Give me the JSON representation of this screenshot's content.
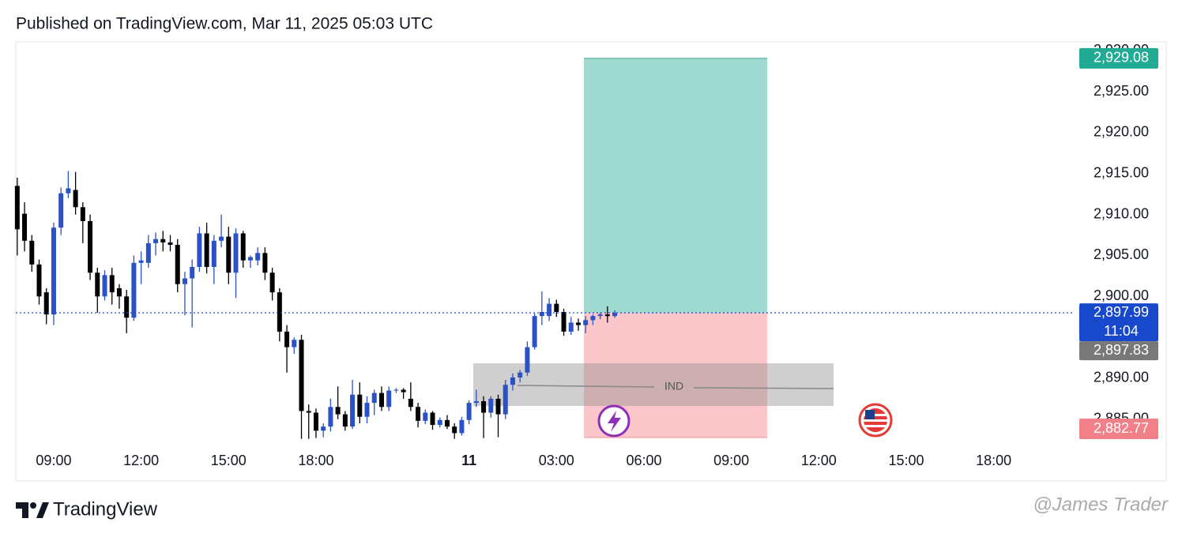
{
  "header": "Published on TradingView.com, Mar 11, 2025 05:03 UTC",
  "footer": "TradingView",
  "watermark": "@James Trader",
  "chart_data": {
    "type": "candlestick",
    "up_color": "#2a52c4",
    "down_color": "#000000",
    "x": [
      0,
      1,
      2,
      3,
      4,
      5,
      6,
      7,
      8,
      9,
      10,
      11,
      12,
      13,
      14,
      15,
      16,
      17,
      18,
      19,
      20,
      21,
      22,
      23,
      24,
      25,
      26,
      27,
      28,
      29,
      30,
      31,
      32,
      33,
      34,
      35,
      36,
      37,
      38,
      39,
      40,
      41,
      42,
      43,
      44,
      45,
      46,
      47,
      48,
      49,
      50,
      51,
      52,
      53,
      54,
      55,
      56,
      57,
      58,
      59,
      60,
      61,
      62,
      63,
      64,
      65,
      66,
      67,
      68,
      69,
      70,
      71,
      72,
      73,
      74,
      75,
      76,
      77,
      78,
      79,
      80,
      81,
      82
    ],
    "candles": [
      [
        2913.5,
        2914.5,
        2905.0,
        2908.2
      ],
      [
        2910.1,
        2911.5,
        2905.5,
        2906.8
      ],
      [
        2906.8,
        2907.5,
        2903.0,
        2903.9
      ],
      [
        2903.9,
        2904.5,
        2899.0,
        2900.0
      ],
      [
        2900.5,
        2901.0,
        2896.6,
        2897.8
      ],
      [
        2897.8,
        2909.0,
        2896.5,
        2908.4
      ],
      [
        2908.4,
        2913.3,
        2907.5,
        2912.6
      ],
      [
        2912.6,
        2915.3,
        2912.0,
        2913.2
      ],
      [
        2913.0,
        2915.2,
        2910.0,
        2910.9
      ],
      [
        2910.9,
        2911.5,
        2906.5,
        2909.2
      ],
      [
        2909.2,
        2910.0,
        2902.0,
        2902.9
      ],
      [
        2902.9,
        2903.5,
        2898.0,
        2900.0
      ],
      [
        2900.0,
        2903.2,
        2899.5,
        2902.6
      ],
      [
        2902.6,
        2903.5,
        2899.0,
        2900.5
      ],
      [
        2901.0,
        2901.5,
        2898.5,
        2900.0
      ],
      [
        2900.0,
        2900.8,
        2895.5,
        2897.4
      ],
      [
        2897.4,
        2905.0,
        2897.0,
        2904.1
      ],
      [
        2904.1,
        2905.5,
        2901.5,
        2904.4
      ],
      [
        2904.1,
        2907.5,
        2903.5,
        2906.5
      ],
      [
        2906.5,
        2907.8,
        2905.0,
        2907.0
      ],
      [
        2907.0,
        2908.0,
        2905.5,
        2906.6
      ],
      [
        2906.6,
        2907.5,
        2905.5,
        2906.3
      ],
      [
        2906.3,
        2907.0,
        2900.5,
        2901.5
      ],
      [
        2901.5,
        2903.0,
        2897.7,
        2902.2
      ],
      [
        2902.2,
        2904.5,
        2896.2,
        2903.6
      ],
      [
        2903.6,
        2908.5,
        2903.0,
        2907.7
      ],
      [
        2907.7,
        2909.0,
        2902.8,
        2903.6
      ],
      [
        2903.6,
        2907.5,
        2901.5,
        2906.8
      ],
      [
        2906.8,
        2910.0,
        2906.0,
        2907.3
      ],
      [
        2907.3,
        2908.5,
        2901.5,
        2902.9
      ],
      [
        2902.9,
        2908.3,
        2899.8,
        2907.7
      ],
      [
        2907.7,
        2908.0,
        2903.5,
        2904.4
      ],
      [
        2904.4,
        2905.0,
        2903.5,
        2904.8
      ],
      [
        2904.4,
        2906.0,
        2903.8,
        2905.3
      ],
      [
        2905.3,
        2906.0,
        2902.0,
        2902.9
      ],
      [
        2902.9,
        2903.5,
        2899.5,
        2900.5
      ],
      [
        2900.5,
        2901.0,
        2894.5,
        2895.7
      ],
      [
        2895.7,
        2896.5,
        2890.7,
        2893.8
      ],
      [
        2893.8,
        2895.0,
        2893.0,
        2894.7
      ],
      [
        2894.7,
        2895.3,
        2882.6,
        2886.0
      ],
      [
        2886.0,
        2886.8,
        2882.6,
        2885.8
      ],
      [
        2885.8,
        2886.3,
        2882.7,
        2883.6
      ],
      [
        2883.6,
        2884.5,
        2882.8,
        2884.1
      ],
      [
        2884.1,
        2887.5,
        2883.5,
        2886.5
      ],
      [
        2886.5,
        2889.0,
        2885.0,
        2885.6
      ],
      [
        2885.6,
        2886.0,
        2883.6,
        2884.1
      ],
      [
        2884.1,
        2889.8,
        2883.8,
        2888.0
      ],
      [
        2888.0,
        2889.5,
        2884.5,
        2885.3
      ],
      [
        2885.3,
        2887.8,
        2884.5,
        2887.0
      ],
      [
        2887.0,
        2888.6,
        2885.5,
        2888.2
      ],
      [
        2888.2,
        2889.0,
        2886.0,
        2886.5
      ],
      [
        2886.5,
        2889.0,
        2886.0,
        2888.5
      ],
      [
        2888.5,
        2888.8,
        2888.2,
        2888.6
      ],
      [
        2888.6,
        2888.8,
        2887.5,
        2888.3
      ],
      [
        2887.5,
        2889.5,
        2886.0,
        2886.5
      ],
      [
        2886.5,
        2887.0,
        2884.0,
        2884.8
      ],
      [
        2884.8,
        2886.2,
        2884.4,
        2885.8
      ],
      [
        2885.8,
        2886.0,
        2883.7,
        2884.3
      ],
      [
        2884.3,
        2885.2,
        2884.0,
        2884.9
      ],
      [
        2884.9,
        2885.5,
        2883.8,
        2884.1
      ],
      [
        2884.1,
        2884.5,
        2882.6,
        2883.3
      ],
      [
        2883.3,
        2885.3,
        2883.0,
        2884.9
      ],
      [
        2884.9,
        2887.3,
        2884.4,
        2887.0
      ],
      [
        2887.0,
        2888.6,
        2886.5,
        2887.2
      ],
      [
        2887.2,
        2887.8,
        2882.7,
        2885.8
      ],
      [
        2885.8,
        2887.8,
        2885.2,
        2887.5
      ],
      [
        2887.5,
        2888.0,
        2882.8,
        2885.6
      ],
      [
        2885.6,
        2889.8,
        2885.0,
        2889.2
      ],
      [
        2889.2,
        2890.6,
        2888.5,
        2890.1
      ],
      [
        2890.1,
        2891.0,
        2889.5,
        2890.7
      ],
      [
        2890.7,
        2894.5,
        2890.3,
        2893.8
      ],
      [
        2893.8,
        2897.9,
        2893.5,
        2897.6
      ],
      [
        2897.6,
        2900.6,
        2896.5,
        2898.1
      ],
      [
        2897.6,
        2899.8,
        2897.0,
        2899.1
      ],
      [
        2899.1,
        2899.6,
        2897.5,
        2898.1
      ],
      [
        2898.1,
        2898.5,
        2895.2,
        2895.7
      ],
      [
        2895.7,
        2897.5,
        2895.3,
        2896.8
      ],
      [
        2896.8,
        2897.3,
        2895.8,
        2896.5
      ],
      [
        2896.5,
        2897.6,
        2895.5,
        2897.1
      ],
      [
        2897.1,
        2897.8,
        2896.5,
        2897.6
      ],
      [
        2897.6,
        2898.0,
        2897.2,
        2897.8
      ],
      [
        2897.8,
        2898.8,
        2896.8,
        2897.6
      ],
      [
        2897.6,
        2898.3,
        2897.4,
        2897.99
      ]
    ],
    "xlim": [
      -0.2,
      145.1
    ],
    "xticks": [
      {
        "value": 5,
        "label": "09:00"
      },
      {
        "value": 17,
        "label": "12:00"
      },
      {
        "value": 29,
        "label": "15:00"
      },
      {
        "value": 41,
        "label": "18:00"
      },
      {
        "value": 62,
        "label": "11"
      },
      {
        "value": 74,
        "label": "03:00"
      },
      {
        "value": 86,
        "label": "06:00"
      },
      {
        "value": 98,
        "label": "09:00"
      },
      {
        "value": 110,
        "label": "12:00"
      },
      {
        "value": 122,
        "label": "15:00"
      },
      {
        "value": 134,
        "label": "18:00"
      }
    ],
    "ylim": [
      2881.7,
      2930.9
    ],
    "yticks": [
      {
        "value": 2885,
        "label": "2,885.00"
      },
      {
        "value": 2890,
        "label": "2,890.00"
      },
      {
        "value": 2895,
        "label": "2,895.00"
      },
      {
        "value": 2900,
        "label": "2,900.00"
      },
      {
        "value": 2905,
        "label": "2,905.00"
      },
      {
        "value": 2910,
        "label": "2,910.00"
      },
      {
        "value": 2915,
        "label": "2,915.00"
      },
      {
        "value": 2920,
        "label": "2,920.00"
      },
      {
        "value": 2925,
        "label": "2,925.00"
      },
      {
        "value": 2930,
        "label": "2,930.00"
      }
    ],
    "current_price": {
      "value": 2897.99,
      "label": "2,897.99",
      "countdown": "11:04",
      "color": "#1848cc"
    },
    "bid_price": {
      "value": 2897.83,
      "label": "2,897.83",
      "color": "#787878"
    },
    "target": {
      "value": 2929.08,
      "label": "2,929.08",
      "color": "#22ab94"
    },
    "stop": {
      "value": 2882.77,
      "label": "2,882.77",
      "color": "#f28088"
    },
    "zone_label": "IND"
  }
}
